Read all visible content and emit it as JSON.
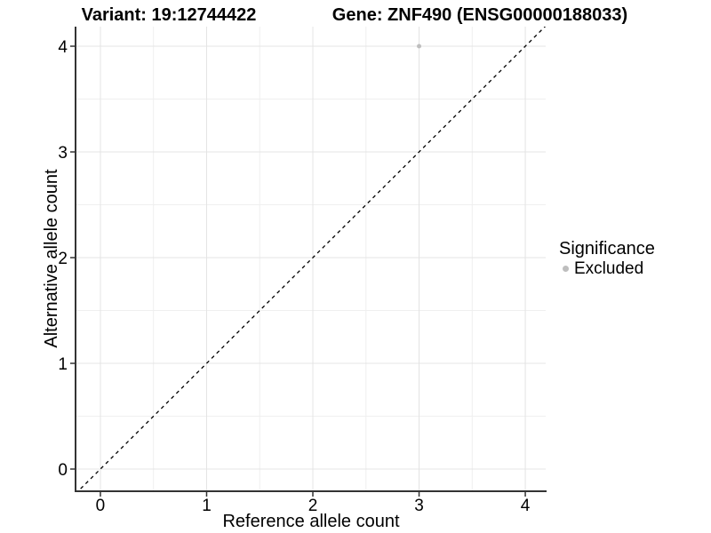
{
  "titles": {
    "variant": "Variant: 19:12744422",
    "gene": "Gene: ZNF490 (ENSG00000188033)"
  },
  "axes": {
    "x": {
      "label": "Reference allele count"
    },
    "y": {
      "label": "Alternative allele count"
    }
  },
  "legend": {
    "title": "Significance",
    "items": [
      {
        "label": "Excluded",
        "color": "#BEBEBE"
      }
    ]
  },
  "chart_data": {
    "type": "scatter",
    "title_left": "Variant: 19:12744422",
    "title_right": "Gene: ZNF490 (ENSG00000188033)",
    "xlabel": "Reference allele count",
    "ylabel": "Alternative allele count",
    "xlim": [
      -0.234,
      4.192
    ],
    "ylim": [
      -0.21,
      4.185
    ],
    "x_ticks": [
      0,
      1,
      2,
      3,
      4
    ],
    "y_ticks": [
      0,
      1,
      2,
      3,
      4
    ],
    "grid": {
      "on": true,
      "minor_step": 0.5,
      "major_color": "#E4E4E4",
      "minor_color": "#EFEFEF"
    },
    "series": [
      {
        "name": "Excluded",
        "color": "#BEBEBE",
        "marker": "circle",
        "marker_radius": 2.5,
        "points": [
          [
            3,
            4
          ]
        ]
      }
    ],
    "reference_line": {
      "kind": "identity",
      "equation": "y = x",
      "style": "dashed",
      "dash": [
        4,
        4
      ],
      "color": "#000000",
      "width": 1.3
    },
    "axis_line_color": "#333333",
    "tick_color": "#333333",
    "legend_position": "right"
  }
}
